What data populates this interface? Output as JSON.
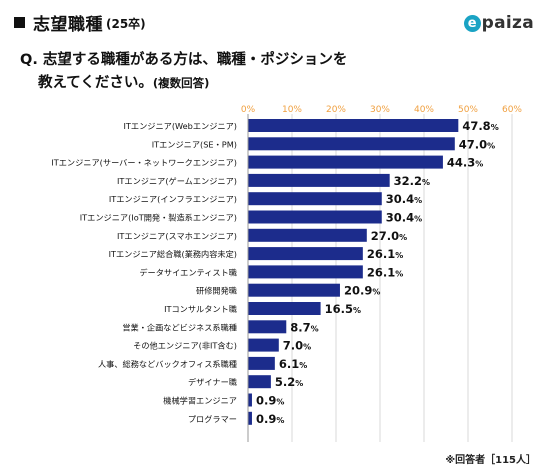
{
  "header": {
    "title": "志望職種",
    "subtitle": "(25卒)"
  },
  "logo": {
    "mark": "e",
    "text": "paiza",
    "accent": "#1aa3c4"
  },
  "question": {
    "line1": "Q. 志望する職種がある方は、職種・ポジションを",
    "line2": "教えてください。",
    "note": "(複数回答)"
  },
  "footnote": "※回答者［115人］",
  "colors": {
    "bar": "#1c2c8c",
    "grid": "#d8d8d8",
    "tick": "#f0a040"
  },
  "chart_data": {
    "type": "bar",
    "orientation": "horizontal",
    "title": "",
    "xlabel": "",
    "ylabel": "",
    "xlim": [
      0,
      60
    ],
    "xticks": [
      0,
      10,
      20,
      30,
      40,
      50,
      60
    ],
    "tick_suffix": "%",
    "grid": true,
    "categories": [
      "ITエンジニア(Webエンジニア)",
      "ITエンジニア(SE・PM)",
      "ITエンジニア(サーバー・ネットワークエンジニア)",
      "ITエンジニア(ゲームエンジニア)",
      "ITエンジニア(インフラエンジニア)",
      "ITエンジニア(IoT開発・製造系エンジニア)",
      "ITエンジニア(スマホエンジニア)",
      "ITエンジニア総合職(業務内容未定)",
      "データサイエンティスト職",
      "研修開発職",
      "ITコンサルタント職",
      "営業・企画などビジネス系職種",
      "その他エンジニア(非IT含む)",
      "人事、総務などバックオフィス系職種",
      "デザイナー職",
      "機械学習エンジニア",
      "プログラマー"
    ],
    "values": [
      47.8,
      47.0,
      44.3,
      32.2,
      30.4,
      30.4,
      27.0,
      26.1,
      26.1,
      20.9,
      16.5,
      8.7,
      7.0,
      6.1,
      5.2,
      0.9,
      0.9
    ],
    "value_labels": [
      "47.8",
      "47.0",
      "44.3",
      "32.2",
      "30.4",
      "30.4",
      "27.0",
      "26.1",
      "26.1",
      "20.9",
      "16.5",
      "8.7",
      "7.0",
      "6.1",
      "5.2",
      "0.9",
      "0.9"
    ]
  }
}
